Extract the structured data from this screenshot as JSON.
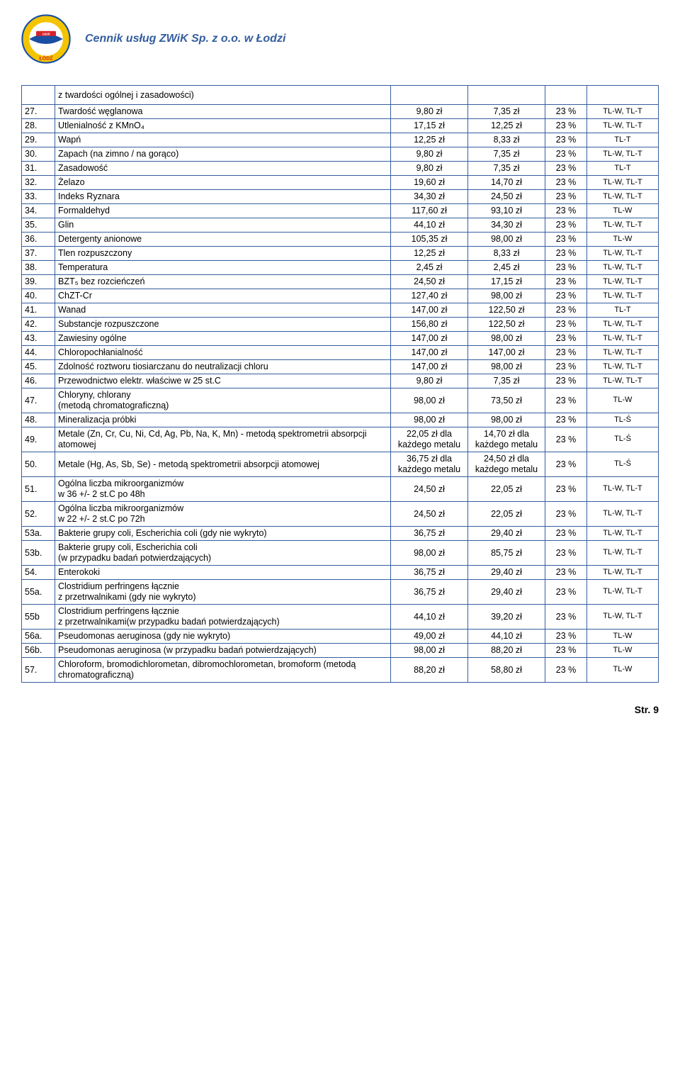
{
  "page": {
    "title": "Cennik usług ZWiK Sp. z o.o. w Łodzi",
    "footer": "Str. 9",
    "logo_text_top": "WODOCIĄGÓW I KANALIZACJI",
    "logo_text_bottom": "ŁÓDŹ",
    "logo_year": "1925"
  },
  "colors": {
    "border": "#355e9e",
    "title": "#355e9e",
    "background": "#ffffff",
    "text": "#000000",
    "logo_red": "#d8232a",
    "logo_blue": "#1a4ea3",
    "logo_yellow": "#f3c400"
  },
  "intro_row": {
    "num": "",
    "name": "z twardości ogólnej i zasadowości)",
    "p1": "",
    "p2": "",
    "pct": "",
    "code": ""
  },
  "rows": [
    {
      "num": "27.",
      "name": "Twardość węglanowa",
      "p1": "9,80 zł",
      "p2": "7,35 zł",
      "pct": "23 %",
      "code": "TL-W, TL-T"
    },
    {
      "num": "28.",
      "name": "Utlenialność z KMnO₄",
      "p1": "17,15 zł",
      "p2": "12,25 zł",
      "pct": "23 %",
      "code": "TL-W, TL-T"
    },
    {
      "num": "29.",
      "name": "Wapń",
      "p1": "12,25 zł",
      "p2": "8,33 zł",
      "pct": "23 %",
      "code": "TL-T"
    },
    {
      "num": "30.",
      "name": "Zapach (na zimno / na gorąco)",
      "p1": "9,80 zł",
      "p2": "7,35 zł",
      "pct": "23 %",
      "code": "TL-W, TL-T"
    },
    {
      "num": "31.",
      "name": "Zasadowość",
      "p1": "9,80 zł",
      "p2": "7,35 zł",
      "pct": "23 %",
      "code": "TL-T"
    },
    {
      "num": "32.",
      "name": "Żelazo",
      "p1": "19,60 zł",
      "p2": "14,70 zł",
      "pct": "23 %",
      "code": "TL-W, TL-T"
    },
    {
      "num": "33.",
      "name": "Indeks Ryznara",
      "p1": "34,30 zł",
      "p2": "24,50 zł",
      "pct": "23 %",
      "code": "TL-W, TL-T"
    },
    {
      "num": "34.",
      "name": "Formaldehyd",
      "p1": "117,60 zł",
      "p2": "93,10 zł",
      "pct": "23 %",
      "code": "TL-W"
    },
    {
      "num": "35.",
      "name": "Glin",
      "p1": "44,10 zł",
      "p2": "34,30 zł",
      "pct": "23 %",
      "code": "TL-W, TL-T"
    },
    {
      "num": "36.",
      "name": "Detergenty anionowe",
      "p1": "105,35 zł",
      "p2": "98,00 zł",
      "pct": "23 %",
      "code": "TL-W"
    },
    {
      "num": "37.",
      "name": "Tlen rozpuszczony",
      "p1": "12,25 zł",
      "p2": "8,33 zł",
      "pct": "23 %",
      "code": "TL-W, TL-T"
    },
    {
      "num": "38.",
      "name": "Temperatura",
      "p1": "2,45 zł",
      "p2": "2,45 zł",
      "pct": "23 %",
      "code": "TL-W, TL-T"
    },
    {
      "num": "39.",
      "name": "BZT₅ bez rozcieńczeń",
      "p1": "24,50 zł",
      "p2": "17,15 zł",
      "pct": "23 %",
      "code": "TL-W, TL-T"
    },
    {
      "num": "40.",
      "name": "ChZT-Cr",
      "p1": "127,40 zł",
      "p2": "98,00 zł",
      "pct": "23 %",
      "code": "TL-W, TL-T"
    },
    {
      "num": "41.",
      "name": "Wanad",
      "p1": "147,00 zł",
      "p2": "122,50 zł",
      "pct": "23 %",
      "code": "TL-T"
    },
    {
      "num": "42.",
      "name": "Substancje rozpuszczone",
      "p1": "156,80 zł",
      "p2": "122,50 zł",
      "pct": "23 %",
      "code": "TL-W, TL-T"
    },
    {
      "num": "43.",
      "name": "Zawiesiny ogólne",
      "p1": "147,00 zł",
      "p2": "98,00 zł",
      "pct": "23 %",
      "code": "TL-W, TL-T"
    },
    {
      "num": "44.",
      "name": "Chloropochłanialność",
      "p1": "147,00 zł",
      "p2": "147,00 zł",
      "pct": "23 %",
      "code": "TL-W, TL-T"
    },
    {
      "num": "45.",
      "name": "Zdolność roztworu tiosiarczanu do neutralizacji chloru",
      "p1": "147,00 zł",
      "p2": "98,00 zł",
      "pct": "23 %",
      "code": "TL-W, TL-T"
    },
    {
      "num": "46.",
      "name": "Przewodnictwo elektr. właściwe w 25 st.C",
      "p1": "9,80 zł",
      "p2": "7,35 zł",
      "pct": "23 %",
      "code": "TL-W, TL-T"
    },
    {
      "num": "47.",
      "name": "Chloryny, chlorany\n(metodą chromatograficzną)",
      "p1": "98,00 zł",
      "p2": "73,50 zł",
      "pct": "23 %",
      "code": "TL-W"
    },
    {
      "num": "48.",
      "name": "Mineralizacja próbki",
      "p1": "98,00 zł",
      "p2": "98,00 zł",
      "pct": "23 %",
      "code": "TL-Ś"
    },
    {
      "num": "49.",
      "name": "Metale (Zn, Cr, Cu, Ni, Cd, Ag, Pb, Na, K, Mn) - metodą spektrometrii absorpcji atomowej",
      "p1": "22,05 zł dla każdego metalu",
      "p2": "14,70 zł dla każdego metalu",
      "pct": "23 %",
      "code": "TL-Ś"
    },
    {
      "num": "50.",
      "name": "Metale (Hg, As, Sb, Se) - metodą spektrometrii absorpcji atomowej",
      "p1": "36,75 zł dla każdego metalu",
      "p2": "24,50 zł dla każdego metalu",
      "pct": "23 %",
      "code": "TL-Ś"
    },
    {
      "num": "51.",
      "name": "Ogólna liczba mikroorganizmów\nw 36 +/- 2 st.C po 48h",
      "p1": "24,50 zł",
      "p2": "22,05 zł",
      "pct": "23 %",
      "code": "TL-W, TL-T"
    },
    {
      "num": "52.",
      "name": "Ogólna liczba mikroorganizmów\nw 22 +/- 2 st.C po 72h",
      "p1": "24,50 zł",
      "p2": "22,05 zł",
      "pct": "23 %",
      "code": "TL-W, TL-T"
    },
    {
      "num": "53a.",
      "name": "Bakterie grupy coli,  Escherichia coli (gdy nie wykryto)",
      "p1": "36,75 zł",
      "p2": "29,40 zł",
      "pct": "23 %",
      "code": "TL-W, TL-T"
    },
    {
      "num": "53b.",
      "name": "Bakterie grupy coli,  Escherichia coli\n(w przypadku badań potwierdzających)",
      "p1": "98,00 zł",
      "p2": "85,75 zł",
      "pct": "23 %",
      "code": "TL-W, TL-T"
    },
    {
      "num": "54.",
      "name": "Enterokoki",
      "p1": "36,75 zł",
      "p2": "29,40 zł",
      "pct": "23 %",
      "code": "TL-W, TL-T"
    },
    {
      "num": "55a.",
      "name": "Clostridium perfringens łącznie\nz przetrwalnikami (gdy nie wykryto)",
      "p1": "36,75 zł",
      "p2": "29,40 zł",
      "pct": "23 %",
      "code": "TL-W, TL-T"
    },
    {
      "num": "55b",
      "name": "Clostridium perfringens łącznie\nz przetrwalnikami(w przypadku badań potwierdzających)",
      "p1": "44,10 zł",
      "p2": "39,20 zł",
      "pct": "23 %",
      "code": "TL-W, TL-T"
    },
    {
      "num": "56a.",
      "name": "Pseudomonas aeruginosa (gdy nie wykryto)",
      "p1": "49,00 zł",
      "p2": "44,10 zł",
      "pct": "23 %",
      "code": "TL-W"
    },
    {
      "num": "56b.",
      "name": "Pseudomonas aeruginosa (w przypadku badań potwierdzających)",
      "p1": "98,00 zł",
      "p2": "88,20 zł",
      "pct": "23 %",
      "code": "TL-W"
    },
    {
      "num": "57.",
      "name": "Chloroform, bromodichlorometan, dibromochlorometan,   bromoform (metodą chromatograficzną)",
      "p1": "88,20 zł",
      "p2": "58,80 zł",
      "pct": "23 %",
      "code": "TL-W"
    }
  ]
}
